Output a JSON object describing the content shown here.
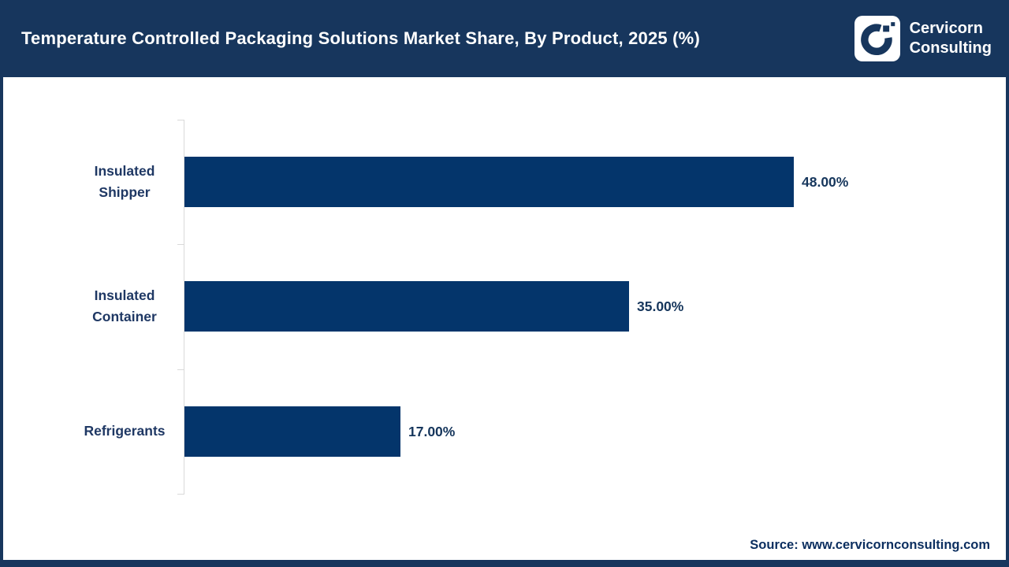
{
  "header": {
    "title": "Temperature Controlled Packaging Solutions Market Share, By Product, 2025 (%)",
    "brand": {
      "line1": "Cervicorn",
      "line2": "Consulting"
    }
  },
  "chart_data": {
    "type": "bar",
    "orientation": "horizontal",
    "title": "Temperature Controlled Packaging Solutions Market Share, By Product, 2025 (%)",
    "categories": [
      "Insulated\nShipper",
      "Insulated\nContainer",
      "Refrigerants"
    ],
    "values": [
      48.0,
      35.0,
      17.0
    ],
    "value_labels": [
      "48.00%",
      "35.00%",
      "17.00%"
    ],
    "unit": "%",
    "xlabel": "",
    "ylabel": "",
    "xlim": [
      0,
      48
    ],
    "grid": false,
    "legend": null,
    "bar_color": "#04356b"
  },
  "footer": {
    "source": "Source: www.cervicornconsulting.com"
  },
  "colors": {
    "header_bg": "#17365d",
    "page_border": "#17365d",
    "bar": "#04356b",
    "category_text": "#1f3864",
    "value_text": "#16365c",
    "source_text": "#0b2e5f",
    "axis_line": "#d9d9d9",
    "title_text": "#ffffff",
    "logo_bg": "#ffffff"
  }
}
